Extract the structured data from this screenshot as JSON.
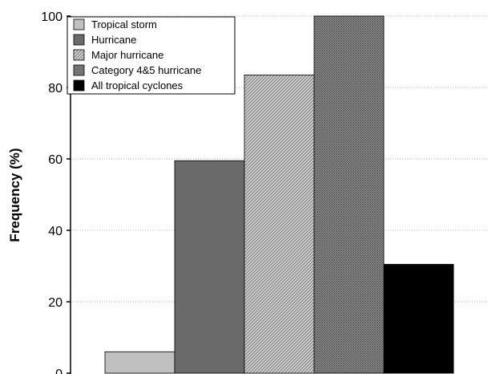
{
  "chart_data": {
    "type": "bar",
    "title": "",
    "xlabel": "",
    "ylabel": "Frequency (%)",
    "ylim": [
      0,
      100
    ],
    "yticks": [
      "0",
      "20",
      "40",
      "60",
      "80",
      "100"
    ],
    "grid": "horizontal dotted",
    "legend_position": "top-left",
    "series": [
      {
        "name": "Tropical storm",
        "value": 6,
        "color": "#c0c0c0",
        "pattern": "solid"
      },
      {
        "name": "Hurricane",
        "value": 59.5,
        "color": "#6a6a6a",
        "pattern": "solid"
      },
      {
        "name": "Major hurricane",
        "value": 83.5,
        "color": "#b8b8b8",
        "pattern": "diagonal-hatch"
      },
      {
        "name": "Category 4&5 hurricane",
        "value": 100,
        "color": "#8a8a8a",
        "pattern": "crosshatch"
      },
      {
        "name": "All tropical cyclones",
        "value": 30.5,
        "color": "#000000",
        "pattern": "solid"
      }
    ]
  }
}
